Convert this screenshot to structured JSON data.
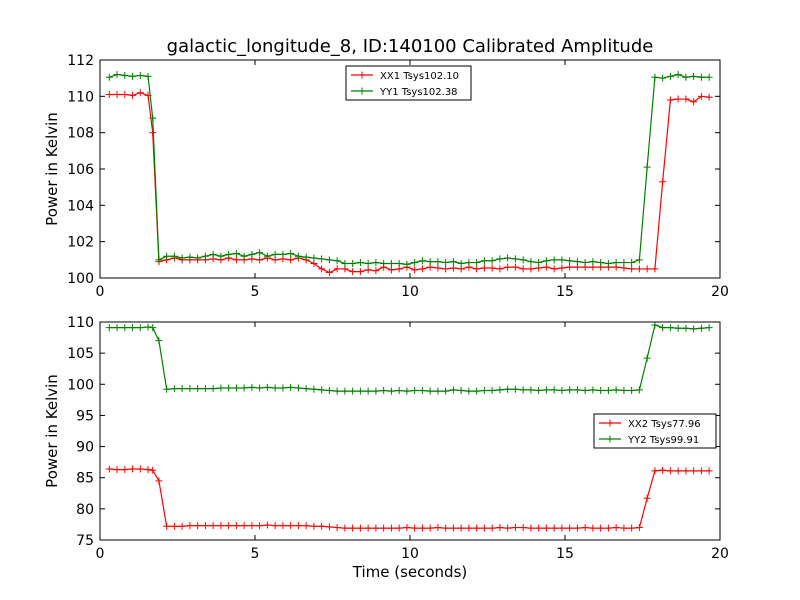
{
  "title": "galactic_longitude_8, ID:140100 Calibrated Amplitude",
  "colors": {
    "red": "#ff0000",
    "green": "#008000"
  },
  "chart_data": [
    {
      "type": "line",
      "xlabel": "",
      "ylabel": "Power in Kelvin",
      "xlim": [
        0,
        20
      ],
      "ylim": [
        100,
        112
      ],
      "xticks": [
        0,
        5,
        10,
        15,
        20
      ],
      "yticks": [
        100,
        102,
        104,
        106,
        108,
        110,
        112
      ],
      "grid": false,
      "legend": "top-center",
      "x": [
        0.3,
        0.55,
        0.8,
        1.05,
        1.3,
        1.55,
        1.7,
        1.9,
        2.15,
        2.4,
        2.65,
        2.9,
        3.15,
        3.4,
        3.65,
        3.9,
        4.15,
        4.4,
        4.65,
        4.9,
        5.15,
        5.4,
        5.65,
        5.9,
        6.15,
        6.4,
        6.65,
        6.9,
        7.15,
        7.4,
        7.65,
        7.9,
        8.15,
        8.4,
        8.65,
        8.9,
        9.15,
        9.4,
        9.65,
        9.9,
        10.15,
        10.4,
        10.65,
        10.9,
        11.15,
        11.4,
        11.65,
        11.9,
        12.15,
        12.4,
        12.65,
        12.9,
        13.15,
        13.4,
        13.65,
        13.9,
        14.15,
        14.4,
        14.65,
        14.9,
        15.15,
        15.4,
        15.65,
        15.9,
        16.15,
        16.4,
        16.65,
        16.9,
        17.15,
        17.4,
        17.65,
        17.9,
        18.15,
        18.4,
        18.65,
        18.9,
        19.15,
        19.4,
        19.65
      ],
      "series": [
        {
          "name": "XX1 Tsys102.10",
          "color": "red",
          "values": [
            110.1,
            110.1,
            110.1,
            110.05,
            110.2,
            110.05,
            108.0,
            100.9,
            101.0,
            101.1,
            101.0,
            101.0,
            101.0,
            101.0,
            101.05,
            101.0,
            101.1,
            101.0,
            101.0,
            101.05,
            101.0,
            101.1,
            101.0,
            101.05,
            101.0,
            101.1,
            101.0,
            100.8,
            100.5,
            100.3,
            100.5,
            100.5,
            100.35,
            100.35,
            100.45,
            100.4,
            100.6,
            100.45,
            100.5,
            100.6,
            100.45,
            100.5,
            100.6,
            100.55,
            100.5,
            100.55,
            100.5,
            100.6,
            100.5,
            100.55,
            100.55,
            100.5,
            100.6,
            100.6,
            100.5,
            100.5,
            100.55,
            100.6,
            100.5,
            100.55,
            100.6,
            100.6,
            100.6,
            100.6,
            100.6,
            100.6,
            100.6,
            100.55,
            100.5,
            100.5,
            100.5,
            100.5,
            105.3,
            109.8,
            109.85,
            109.85,
            109.7,
            110.0,
            109.95
          ]
        },
        {
          "name": "YY1 Tsys102.38",
          "color": "green",
          "values": [
            111.05,
            111.2,
            111.15,
            111.1,
            111.15,
            111.1,
            108.8,
            101.0,
            101.2,
            101.2,
            101.1,
            101.15,
            101.1,
            101.2,
            101.3,
            101.2,
            101.3,
            101.35,
            101.2,
            101.3,
            101.4,
            101.2,
            101.3,
            101.3,
            101.35,
            101.2,
            101.15,
            101.1,
            101.05,
            101.0,
            100.95,
            100.8,
            100.8,
            100.85,
            100.8,
            100.85,
            100.8,
            100.8,
            100.8,
            100.75,
            100.85,
            100.95,
            100.9,
            100.9,
            100.85,
            100.9,
            100.8,
            100.85,
            100.85,
            100.95,
            100.95,
            101.05,
            101.1,
            101.05,
            101.0,
            100.9,
            100.85,
            100.95,
            101.0,
            101.0,
            100.95,
            100.9,
            100.85,
            100.9,
            100.85,
            100.8,
            100.85,
            100.85,
            100.85,
            101.0,
            106.1,
            111.05,
            111.0,
            111.1,
            111.2,
            111.05,
            111.1,
            111.05,
            111.05
          ]
        }
      ]
    },
    {
      "type": "line",
      "xlabel": "Time (seconds)",
      "ylabel": "Power in Kelvin",
      "xlim": [
        0,
        20
      ],
      "ylim": [
        75,
        110
      ],
      "xticks": [
        0,
        5,
        10,
        15,
        20
      ],
      "yticks": [
        75,
        80,
        85,
        90,
        95,
        100,
        105,
        110
      ],
      "grid": false,
      "legend": "right",
      "x": [
        0.3,
        0.55,
        0.8,
        1.05,
        1.3,
        1.55,
        1.7,
        1.9,
        2.15,
        2.4,
        2.65,
        2.9,
        3.15,
        3.4,
        3.65,
        3.9,
        4.15,
        4.4,
        4.65,
        4.9,
        5.15,
        5.4,
        5.65,
        5.9,
        6.15,
        6.4,
        6.65,
        6.9,
        7.15,
        7.4,
        7.65,
        7.9,
        8.15,
        8.4,
        8.65,
        8.9,
        9.15,
        9.4,
        9.65,
        9.9,
        10.15,
        10.4,
        10.65,
        10.9,
        11.15,
        11.4,
        11.65,
        11.9,
        12.15,
        12.4,
        12.65,
        12.9,
        13.15,
        13.4,
        13.65,
        13.9,
        14.15,
        14.4,
        14.65,
        14.9,
        15.15,
        15.4,
        15.65,
        15.9,
        16.15,
        16.4,
        16.65,
        16.9,
        17.15,
        17.4,
        17.65,
        17.9,
        18.15,
        18.4,
        18.65,
        18.9,
        19.15,
        19.4,
        19.65
      ],
      "series": [
        {
          "name": "XX2 Tsys77.96",
          "color": "red",
          "values": [
            86.4,
            86.3,
            86.3,
            86.4,
            86.4,
            86.3,
            86.2,
            84.5,
            77.2,
            77.2,
            77.2,
            77.3,
            77.3,
            77.3,
            77.3,
            77.3,
            77.3,
            77.3,
            77.3,
            77.3,
            77.3,
            77.4,
            77.3,
            77.3,
            77.3,
            77.3,
            77.3,
            77.2,
            77.2,
            77.1,
            77.0,
            76.9,
            76.9,
            76.9,
            76.9,
            76.9,
            76.9,
            76.9,
            76.9,
            77.0,
            76.9,
            76.9,
            76.9,
            77.0,
            76.9,
            76.9,
            76.9,
            76.9,
            76.9,
            76.9,
            76.9,
            77.0,
            76.9,
            77.0,
            77.0,
            76.9,
            76.9,
            76.9,
            76.9,
            76.9,
            76.9,
            76.9,
            77.0,
            76.9,
            76.9,
            76.9,
            77.0,
            76.9,
            76.9,
            77.0,
            81.7,
            86.1,
            86.2,
            86.1,
            86.1,
            86.1,
            86.1,
            86.1,
            86.1
          ]
        },
        {
          "name": "YY2 Tsys99.91",
          "color": "green",
          "values": [
            109.1,
            109.1,
            109.1,
            109.1,
            109.1,
            109.2,
            109.1,
            107.0,
            99.2,
            99.3,
            99.3,
            99.3,
            99.3,
            99.3,
            99.3,
            99.4,
            99.4,
            99.4,
            99.4,
            99.5,
            99.4,
            99.5,
            99.4,
            99.4,
            99.5,
            99.4,
            99.3,
            99.2,
            99.1,
            99.0,
            98.9,
            98.9,
            98.9,
            98.9,
            98.9,
            98.9,
            99.0,
            98.9,
            99.0,
            98.9,
            99.0,
            99.0,
            98.9,
            98.9,
            98.9,
            99.1,
            99.0,
            98.9,
            98.9,
            99.0,
            99.0,
            99.1,
            99.2,
            99.2,
            99.1,
            99.1,
            99.0,
            99.1,
            99.1,
            99.0,
            99.1,
            99.1,
            99.0,
            99.1,
            99.0,
            99.0,
            99.1,
            99.0,
            99.0,
            99.1,
            104.2,
            109.5,
            109.1,
            109.1,
            109.0,
            109.0,
            108.9,
            109.0,
            109.1
          ]
        }
      ]
    }
  ]
}
